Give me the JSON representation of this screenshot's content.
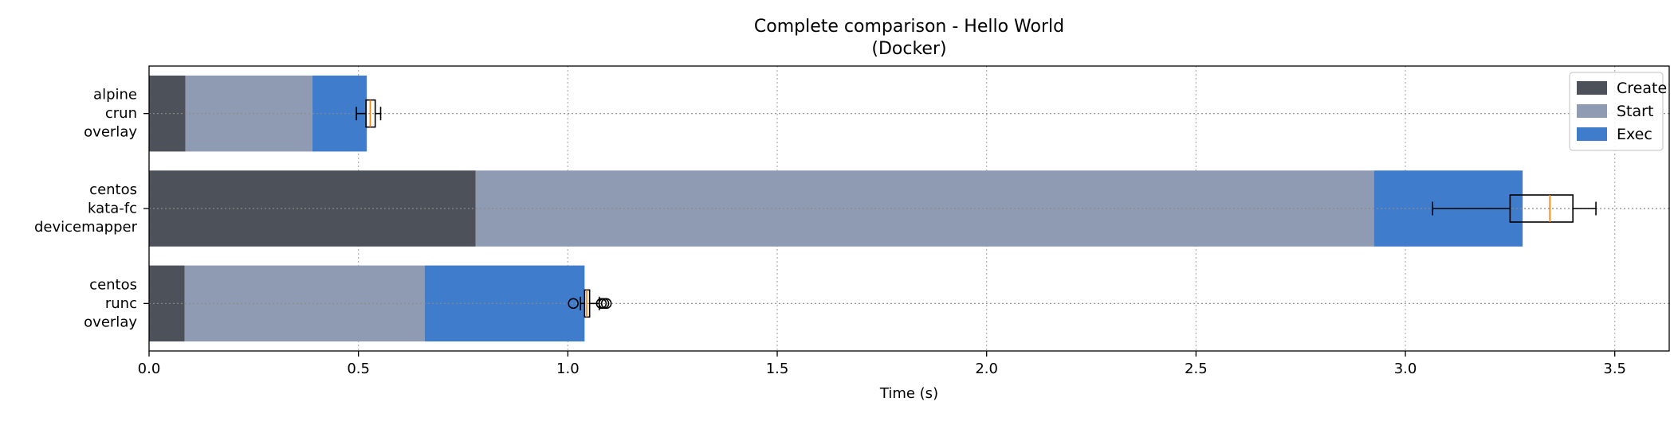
{
  "chart_data": {
    "type": "bar",
    "orientation": "horizontal",
    "stacked": true,
    "title": "Complete comparison - Hello World",
    "subtitle": "(Docker)",
    "xlabel": "Time (s)",
    "ylabel": "",
    "xlim": [
      0,
      3.63
    ],
    "xticks": [
      "0.0",
      "0.5",
      "1.0",
      "1.5",
      "2.0",
      "2.5",
      "3.0",
      "3.5"
    ],
    "grid": true,
    "legend_position": "top-right",
    "categories": [
      [
        "alpine",
        "crun",
        "overlay"
      ],
      [
        "centos",
        "kata-fc",
        "devicemapper"
      ],
      [
        "centos",
        "runc",
        "overlay"
      ]
    ],
    "series": [
      {
        "name": "Create",
        "color": "#4d5159",
        "values": [
          0.087,
          0.78,
          0.085
        ]
      },
      {
        "name": "Start",
        "color": "#8f9bb3",
        "values": [
          0.303,
          2.145,
          0.573
        ]
      },
      {
        "name": "Exec",
        "color": "#3f7ccc",
        "values": [
          0.13,
          0.355,
          0.382
        ]
      }
    ],
    "boxplots": [
      {
        "whisker_low": 0.495,
        "q1": 0.518,
        "median": 0.528,
        "q3": 0.54,
        "whisker_high": 0.553,
        "outliers": []
      },
      {
        "whisker_low": 3.065,
        "q1": 3.25,
        "median": 3.345,
        "q3": 3.4,
        "whisker_high": 3.455,
        "outliers": []
      },
      {
        "whisker_low": 1.03,
        "q1": 1.04,
        "median": 1.045,
        "q3": 1.052,
        "whisker_high": 1.075,
        "outliers": [
          1.013,
          1.08,
          1.086,
          1.092
        ]
      }
    ]
  }
}
